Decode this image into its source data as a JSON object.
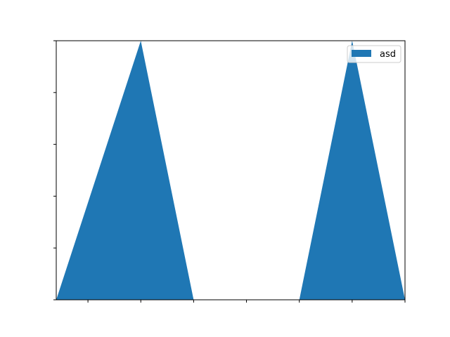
{
  "chart_data": {
    "type": "area",
    "title": "",
    "xlabel": "",
    "ylabel": "",
    "xlim": [
      0,
      6.6
    ],
    "ylim": [
      0,
      5
    ],
    "grid": false,
    "legend_position": "upper-right",
    "x_ticks": [
      0.6,
      1.6,
      2.6,
      3.6,
      4.6,
      5.6,
      6.6
    ],
    "y_ticks": [
      0,
      1,
      2,
      3,
      4,
      5
    ],
    "series": [
      {
        "name": "asd",
        "color": "#1f77b4",
        "x": [
          0,
          1.6,
          2.6,
          4.6,
          5.6,
          6.6
        ],
        "y": [
          0,
          5,
          0,
          0,
          5,
          0
        ]
      }
    ]
  }
}
